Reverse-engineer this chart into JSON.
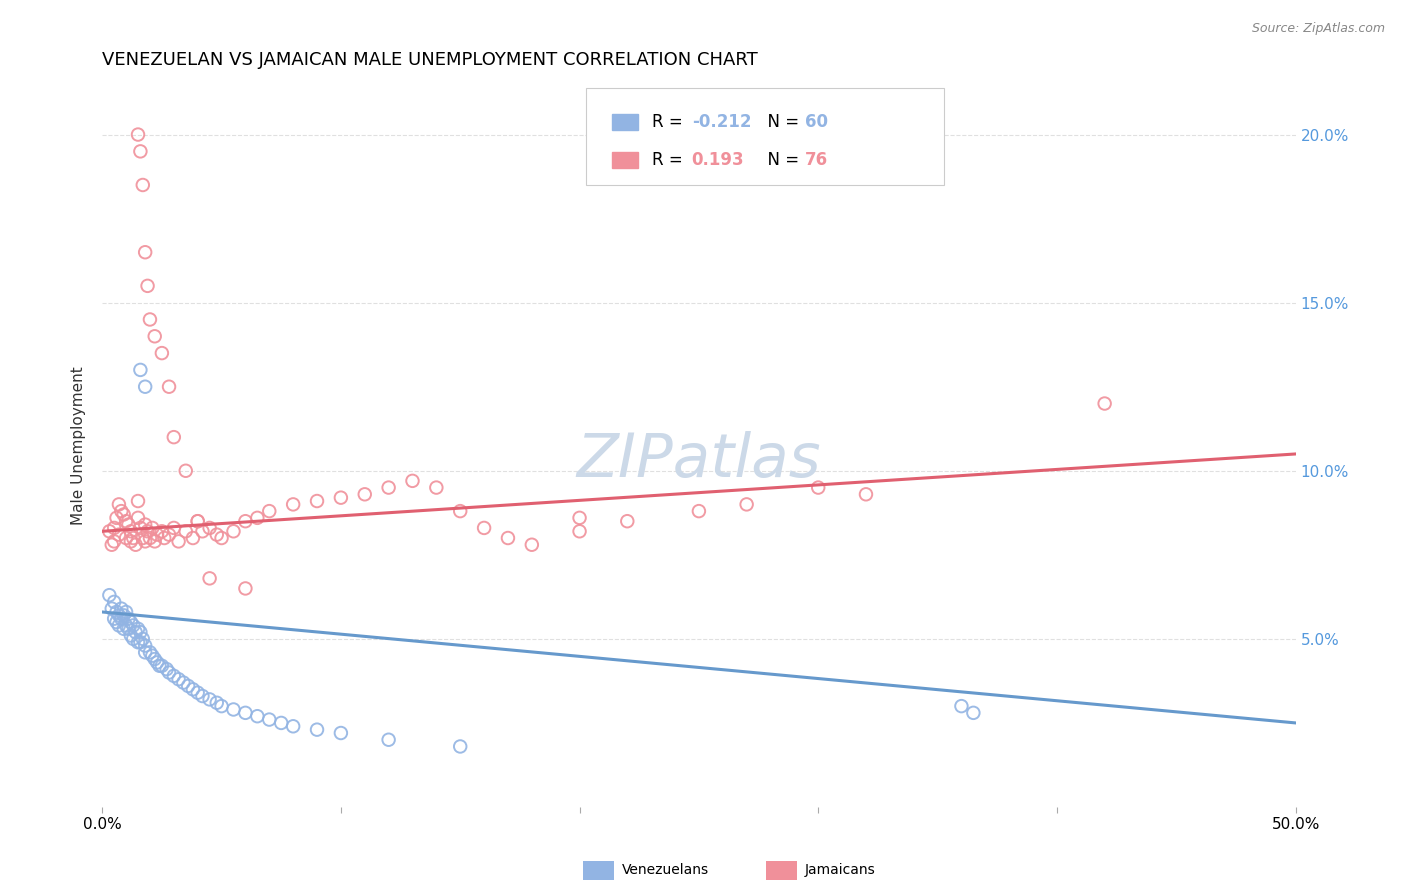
{
  "title": "VENEZUELAN VS JAMAICAN MALE UNEMPLOYMENT CORRELATION CHART",
  "source": "Source: ZipAtlas.com",
  "ylabel": "Male Unemployment",
  "legend_blue_label": "Venezuelans",
  "legend_pink_label": "Jamaicans",
  "legend_blue_r": "R = -0.212",
  "legend_blue_n": "N = 60",
  "legend_pink_r": "R =  0.193",
  "legend_pink_n": "N = 76",
  "blue_color": "#92b4e3",
  "pink_color": "#f0909a",
  "blue_line_color": "#6699cc",
  "pink_line_color": "#e06070",
  "watermark": "ZIPatlas",
  "xlim": [
    0.0,
    0.5
  ],
  "ylim": [
    0.0,
    0.215
  ],
  "yticks": [
    0.05,
    0.1,
    0.15,
    0.2
  ],
  "ytick_labels": [
    "5.0%",
    "10.0%",
    "15.0%",
    "20.0%"
  ],
  "xticks": [
    0.0,
    0.1,
    0.2,
    0.3,
    0.4,
    0.5
  ],
  "xtick_labels": [
    "0.0%",
    "",
    "",
    "",
    "",
    "50.0%"
  ],
  "blue_x": [
    0.003,
    0.004,
    0.005,
    0.005,
    0.006,
    0.006,
    0.007,
    0.007,
    0.008,
    0.008,
    0.009,
    0.009,
    0.01,
    0.01,
    0.011,
    0.011,
    0.012,
    0.012,
    0.013,
    0.013,
    0.014,
    0.015,
    0.015,
    0.016,
    0.016,
    0.017,
    0.018,
    0.018,
    0.02,
    0.021,
    0.022,
    0.023,
    0.024,
    0.025,
    0.027,
    0.028,
    0.03,
    0.032,
    0.034,
    0.036,
    0.038,
    0.04,
    0.042,
    0.045,
    0.048,
    0.05,
    0.055,
    0.06,
    0.065,
    0.07,
    0.075,
    0.08,
    0.09,
    0.1,
    0.12,
    0.15,
    0.016,
    0.018,
    0.36,
    0.365
  ],
  "blue_y": [
    0.063,
    0.059,
    0.056,
    0.061,
    0.058,
    0.055,
    0.057,
    0.054,
    0.059,
    0.056,
    0.057,
    0.053,
    0.058,
    0.054,
    0.056,
    0.053,
    0.055,
    0.051,
    0.054,
    0.05,
    0.052,
    0.053,
    0.049,
    0.052,
    0.049,
    0.05,
    0.048,
    0.046,
    0.046,
    0.045,
    0.044,
    0.043,
    0.042,
    0.042,
    0.041,
    0.04,
    0.039,
    0.038,
    0.037,
    0.036,
    0.035,
    0.034,
    0.033,
    0.032,
    0.031,
    0.03,
    0.029,
    0.028,
    0.027,
    0.026,
    0.025,
    0.024,
    0.023,
    0.022,
    0.02,
    0.018,
    0.13,
    0.125,
    0.03,
    0.028
  ],
  "pink_x": [
    0.003,
    0.004,
    0.005,
    0.005,
    0.006,
    0.007,
    0.007,
    0.008,
    0.009,
    0.01,
    0.01,
    0.011,
    0.012,
    0.012,
    0.013,
    0.014,
    0.015,
    0.015,
    0.016,
    0.017,
    0.018,
    0.018,
    0.019,
    0.02,
    0.021,
    0.022,
    0.023,
    0.025,
    0.026,
    0.028,
    0.03,
    0.032,
    0.035,
    0.038,
    0.04,
    0.042,
    0.045,
    0.048,
    0.05,
    0.055,
    0.06,
    0.065,
    0.07,
    0.08,
    0.09,
    0.1,
    0.11,
    0.12,
    0.13,
    0.14,
    0.15,
    0.16,
    0.17,
    0.18,
    0.2,
    0.22,
    0.25,
    0.27,
    0.3,
    0.32,
    0.015,
    0.016,
    0.017,
    0.018,
    0.019,
    0.02,
    0.022,
    0.025,
    0.028,
    0.03,
    0.035,
    0.04,
    0.045,
    0.06,
    0.2,
    0.42
  ],
  "pink_y": [
    0.082,
    0.078,
    0.083,
    0.079,
    0.086,
    0.081,
    0.09,
    0.088,
    0.087,
    0.085,
    0.08,
    0.084,
    0.079,
    0.082,
    0.08,
    0.078,
    0.091,
    0.086,
    0.083,
    0.08,
    0.084,
    0.079,
    0.082,
    0.08,
    0.083,
    0.079,
    0.081,
    0.082,
    0.08,
    0.081,
    0.083,
    0.079,
    0.082,
    0.08,
    0.085,
    0.082,
    0.083,
    0.081,
    0.08,
    0.082,
    0.085,
    0.086,
    0.088,
    0.09,
    0.091,
    0.092,
    0.093,
    0.095,
    0.097,
    0.095,
    0.088,
    0.083,
    0.08,
    0.078,
    0.082,
    0.085,
    0.088,
    0.09,
    0.095,
    0.093,
    0.2,
    0.195,
    0.185,
    0.165,
    0.155,
    0.145,
    0.14,
    0.135,
    0.125,
    0.11,
    0.1,
    0.085,
    0.068,
    0.065,
    0.086,
    0.12
  ],
  "blue_trend_x": [
    0.0,
    0.5
  ],
  "blue_trend_y": [
    0.058,
    0.025
  ],
  "pink_trend_x": [
    0.0,
    0.5
  ],
  "pink_trend_y": [
    0.082,
    0.105
  ],
  "marker_size": 9,
  "marker_linewidth": 1.4,
  "title_fontsize": 13,
  "axis_label_fontsize": 11,
  "tick_fontsize": 11,
  "legend_fontsize": 12,
  "source_fontsize": 9,
  "watermark_fontsize": 44,
  "watermark_color": "#ccd9e8",
  "background_color": "#ffffff",
  "grid_color": "#e0e0e0"
}
